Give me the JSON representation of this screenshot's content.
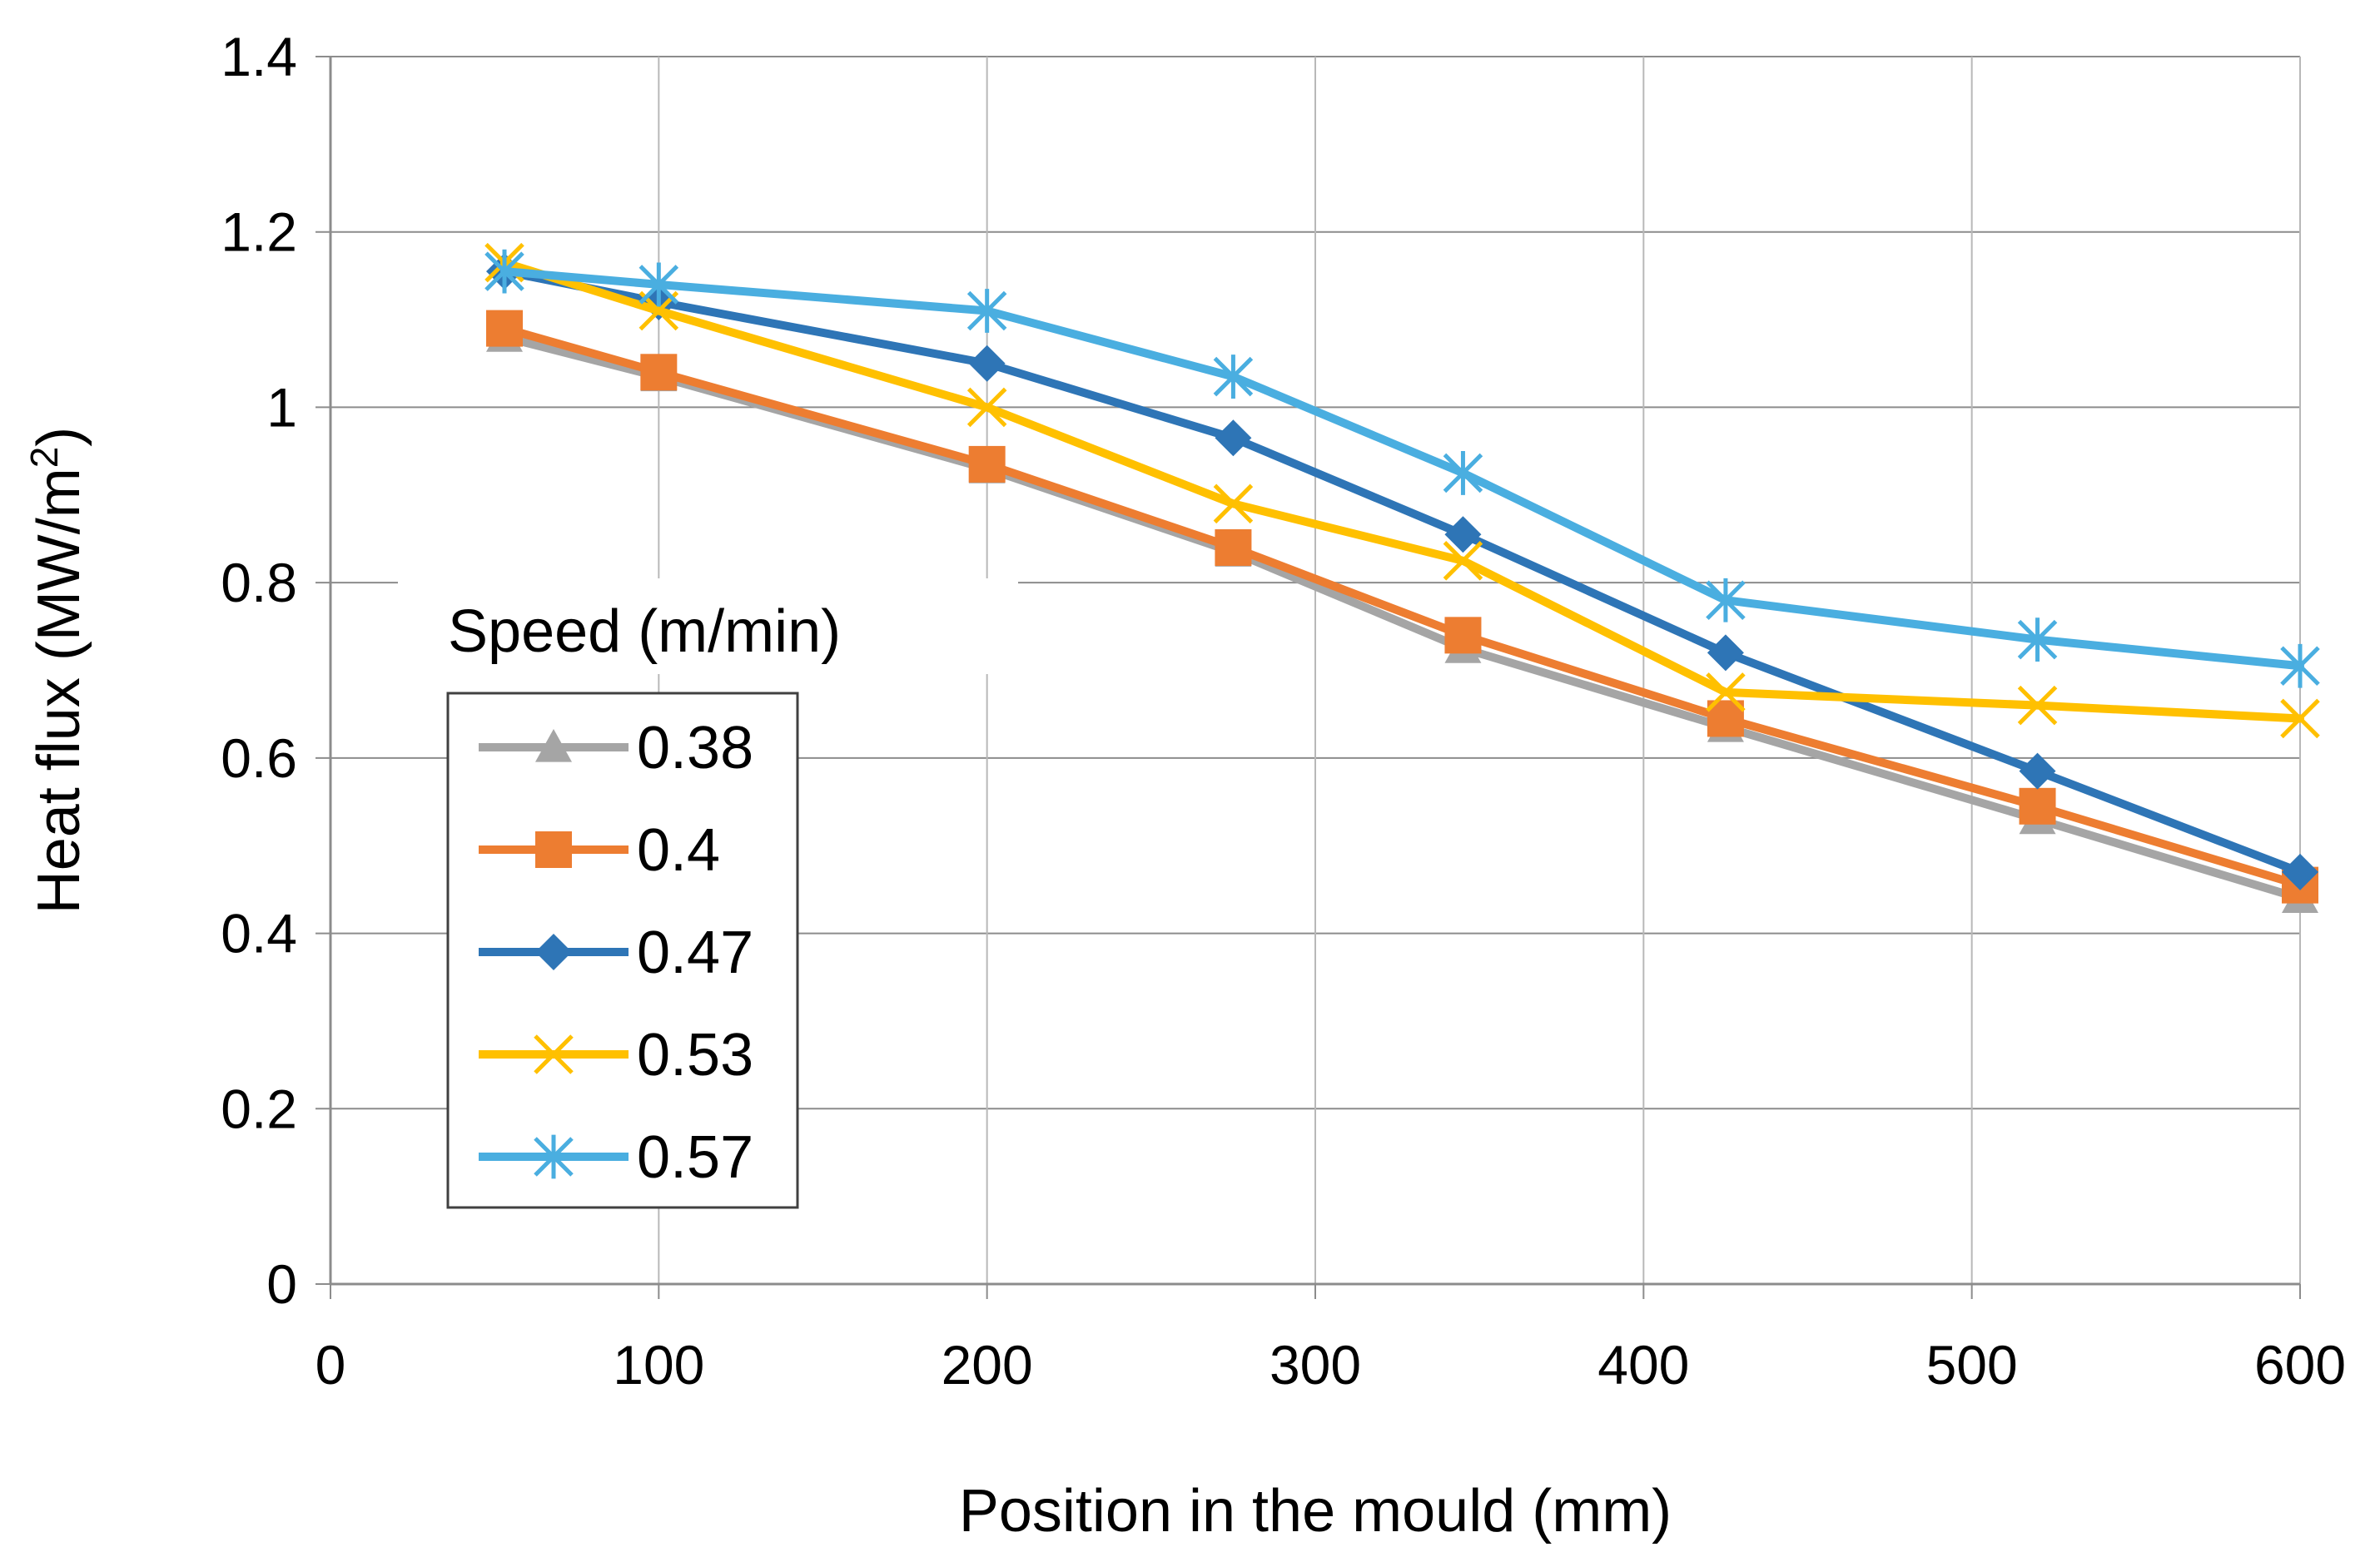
{
  "chart_data": {
    "type": "line",
    "title": "",
    "xlabel": "Position in the mould (mm)",
    "ylabel_parts": {
      "main": "Heat flux (MW/m",
      "superscript": "2",
      "close": ")"
    },
    "xlim": [
      0,
      600
    ],
    "ylim": [
      0,
      1.4
    ],
    "xticks": [
      0,
      100,
      200,
      300,
      400,
      500,
      600
    ],
    "yticks": [
      0,
      0.2,
      0.4,
      0.6,
      0.8,
      1.0,
      1.2,
      1.4
    ],
    "xtick_labels": [
      "0",
      "100",
      "200",
      "300",
      "400",
      "500",
      "600"
    ],
    "ytick_labels": [
      "0",
      "0.2",
      "0.4",
      "0.6",
      "0.8",
      "1",
      "1.2",
      "1.4"
    ],
    "grid": true,
    "legend_title": "Speed (m/min)",
    "legend_position": "lower-left",
    "x": [
      53,
      100,
      200,
      275,
      345,
      425,
      520,
      600
    ],
    "series": [
      {
        "name": "0.38",
        "color": "#a5a5a5",
        "marker": "triangle",
        "values": [
          1.08,
          1.035,
          0.93,
          0.835,
          0.725,
          0.635,
          0.53,
          0.44
        ]
      },
      {
        "name": "0.4",
        "color": "#ed7d31",
        "marker": "square",
        "values": [
          1.09,
          1.04,
          0.935,
          0.84,
          0.74,
          0.645,
          0.545,
          0.455
        ]
      },
      {
        "name": "0.47",
        "color": "#2e75b6",
        "marker": "diamond",
        "values": [
          1.155,
          1.12,
          1.05,
          0.965,
          0.855,
          0.72,
          0.585,
          0.47
        ]
      },
      {
        "name": "0.53",
        "color": "#ffc000",
        "marker": "x",
        "values": [
          1.165,
          1.11,
          1.0,
          0.89,
          0.825,
          0.675,
          0.66,
          0.645
        ]
      },
      {
        "name": "0.57",
        "color": "#4aaee0",
        "marker": "star",
        "values": [
          1.155,
          1.14,
          1.11,
          1.035,
          0.925,
          0.78,
          0.735,
          0.705
        ]
      }
    ]
  }
}
